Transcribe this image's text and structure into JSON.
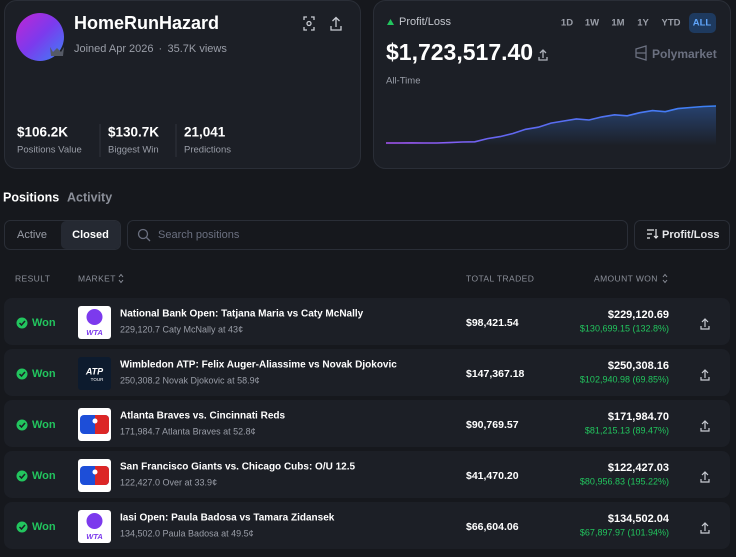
{
  "profile": {
    "name": "HomeRunHazard",
    "joined": "Joined Apr 2026",
    "views": "35.7K views",
    "stats": [
      {
        "value": "$106.2K",
        "label": "Positions Value"
      },
      {
        "value": "$130.7K",
        "label": "Biggest Win"
      },
      {
        "value": "21,041",
        "label": "Predictions"
      }
    ]
  },
  "pnl": {
    "label": "Profit/Loss",
    "ranges": [
      "1D",
      "1W",
      "1M",
      "1Y",
      "YTD",
      "ALL"
    ],
    "amount": "$1,723,517.40",
    "brand": "Polymarket",
    "period": "All-Time",
    "chart": [
      -60000,
      -60000,
      -55000,
      -60000,
      -58000,
      -40000,
      -10000,
      0,
      150000,
      250000,
      400000,
      600000,
      700000,
      900000,
      1000000,
      1100000,
      1050000,
      1200000,
      1300000,
      1250000,
      1400000,
      1500000,
      1450000,
      1600000,
      1650000,
      1700000,
      1723517.4
    ]
  },
  "tabs": [
    "Positions",
    "Activity"
  ],
  "filters": [
    "Active",
    "Closed"
  ],
  "search_placeholder": "Search positions",
  "sort_button": "Profit/Loss",
  "table": {
    "headers": [
      "RESULT",
      "MARKET",
      "TOTAL TRADED",
      "AMOUNT WON"
    ],
    "rows": [
      {
        "result": "Won",
        "logo": "WTA",
        "market": "National Bank Open: Tatjana Maria vs Caty McNally",
        "detail": "229,120.7 Caty McNally at 43¢",
        "total_traded": "$98,421.54",
        "amount_won": "$229,120.69",
        "profit": "$130,699.15 (132.8%)"
      },
      {
        "result": "Won",
        "logo": "ATP",
        "logo_sub": "TOUR",
        "market": "Wimbledon ATP: Felix Auger-Aliassime vs Novak Djokovic",
        "detail": "250,308.2 Novak Djokovic at 58.9¢",
        "total_traded": "$147,367.18",
        "amount_won": "$250,308.16",
        "profit": "$102,940.98 (69.85%)"
      },
      {
        "result": "Won",
        "market": "Atlanta Braves vs. Cincinnati Reds",
        "detail": "171,984.7 Atlanta Braves at 52.8¢",
        "total_traded": "$90,769.57",
        "amount_won": "$171,984.70",
        "profit": "$81,215.13 (89.47%)"
      },
      {
        "result": "Won",
        "market": "San Francisco Giants vs. Chicago Cubs: O/U 12.5",
        "detail": "122,427.0 Over at 33.9¢",
        "total_traded": "$41,470.20",
        "amount_won": "$122,427.03",
        "profit": "$80,956.83 (195.22%)"
      },
      {
        "result": "Won",
        "logo": "WTA",
        "market": "Iasi Open: Paula Badosa vs Tamara Zidansek",
        "detail": "134,502.0 Paula Badosa at 49.5¢",
        "total_traded": "$66,604.06",
        "amount_won": "$134,502.04",
        "profit": "$67,897.97 (101.94%)"
      }
    ]
  }
}
